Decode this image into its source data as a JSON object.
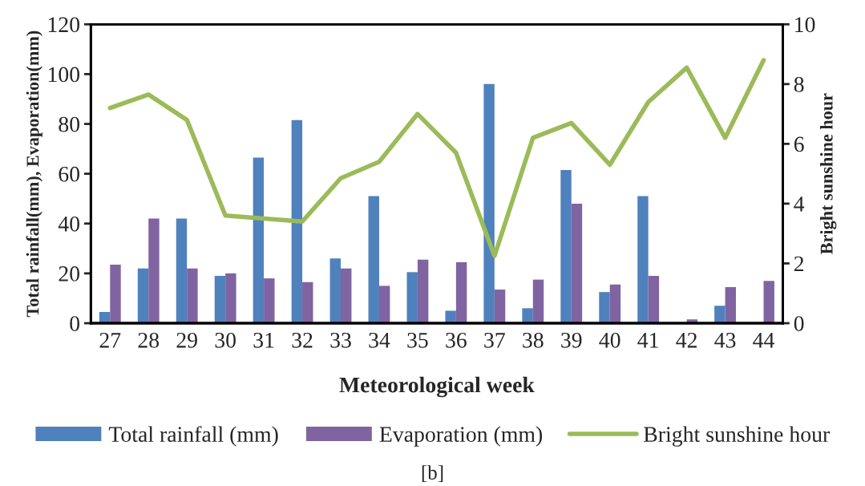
{
  "chart_data": {
    "type": "bar",
    "xlabel": "Meteorological week",
    "ylabel": "Total rainfall(mm), Evaporation(mm)",
    "y2label": "Bright sunshine hour",
    "categories": [
      "27",
      "28",
      "29",
      "30",
      "31",
      "32",
      "33",
      "34",
      "35",
      "36",
      "37",
      "38",
      "39",
      "40",
      "41",
      "42",
      "43",
      "44"
    ],
    "series": [
      {
        "name": "Total rainfall (mm)",
        "color": "#4f81bd",
        "values": [
          4.5,
          22,
          42,
          19,
          66.5,
          81.5,
          26,
          51,
          20.5,
          5,
          96,
          6,
          61.5,
          12.5,
          51,
          0,
          7,
          0
        ]
      },
      {
        "name": "Evaporation (mm)",
        "color": "#8064a2",
        "values": [
          23.5,
          42,
          22,
          20,
          18,
          16.5,
          22,
          15,
          25.5,
          24.5,
          13.5,
          17.5,
          48,
          15.5,
          19,
          1.5,
          14.5,
          17
        ]
      },
      {
        "name": "Bright sunshine hour",
        "type": "line",
        "axis": "y2",
        "color": "#9bbb59",
        "values": [
          7.2,
          7.65,
          6.8,
          3.6,
          3.5,
          3.4,
          4.85,
          5.4,
          7.0,
          5.7,
          2.25,
          6.2,
          6.7,
          5.3,
          7.4,
          8.55,
          6.2,
          8.8
        ]
      }
    ],
    "ylim": [
      0,
      120
    ],
    "yticks": [
      0,
      20,
      40,
      60,
      80,
      100,
      120
    ],
    "y2lim": [
      0,
      10
    ],
    "y2ticks": [
      0,
      2,
      4,
      6,
      8,
      10
    ],
    "legend": "bottom",
    "grid": false,
    "annotations": [
      "[b]"
    ]
  }
}
